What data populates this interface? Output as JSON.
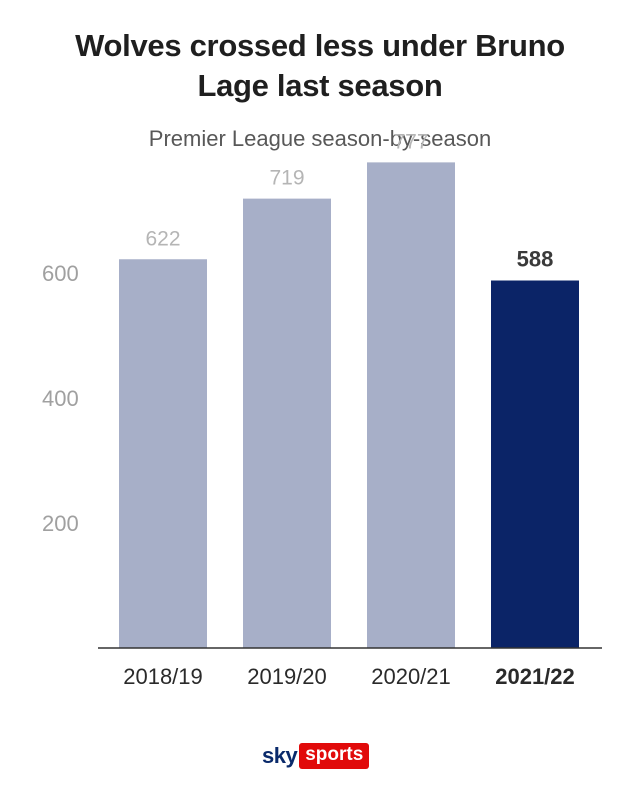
{
  "header": {
    "title_line1": "Wolves crossed less under Bruno",
    "title_line2": "Lage last season",
    "subtitle": "Premier League season-by-season"
  },
  "chart_data": {
    "type": "bar",
    "title": "Wolves crossed less under Bruno Lage last season",
    "subtitle": "Premier League season-by-season",
    "categories": [
      "2018/19",
      "2019/20",
      "2020/21",
      "2021/22"
    ],
    "values": [
      622,
      719,
      777,
      588
    ],
    "value_labels": [
      "622",
      "719",
      "777",
      "588"
    ],
    "highlight_index": 3,
    "yticks": [
      200,
      400,
      600
    ],
    "ytick_labels": [
      "200",
      "400",
      "600"
    ],
    "ylim": [
      0,
      800
    ],
    "grid": false,
    "legend": "none",
    "colors": {
      "bar": "#a7afc8",
      "highlight": "#0b2467",
      "label": "#b5b5b5",
      "highlight_label": "#3a3a3a",
      "tick": "#a0a0a0",
      "category": "#2a2a2a",
      "axis": "#333333"
    }
  },
  "footer": {
    "logo_sky": "sky",
    "logo_sports": "sports"
  }
}
